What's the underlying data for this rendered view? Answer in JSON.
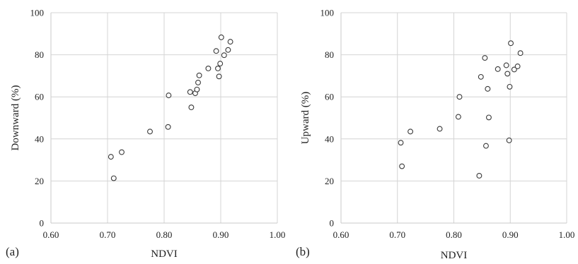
{
  "chart_data": [
    {
      "type": "scatter",
      "panel_label": "(a)",
      "xlabel": "NDVI",
      "ylabel": "Downward (%)",
      "xlim": [
        0.6,
        1.0
      ],
      "ylim": [
        0,
        100
      ],
      "xticks": [
        "0.60",
        "0.70",
        "0.80",
        "0.90",
        "1.00"
      ],
      "yticks": [
        "0",
        "20",
        "40",
        "60",
        "80",
        "100"
      ],
      "grid": true,
      "points": [
        {
          "x": 0.706,
          "y": 31.5
        },
        {
          "x": 0.711,
          "y": 21.3
        },
        {
          "x": 0.725,
          "y": 33.7
        },
        {
          "x": 0.775,
          "y": 43.5
        },
        {
          "x": 0.807,
          "y": 45.7
        },
        {
          "x": 0.808,
          "y": 60.7
        },
        {
          "x": 0.846,
          "y": 62.3
        },
        {
          "x": 0.848,
          "y": 55.0
        },
        {
          "x": 0.855,
          "y": 61.7
        },
        {
          "x": 0.858,
          "y": 63.5
        },
        {
          "x": 0.86,
          "y": 66.8
        },
        {
          "x": 0.862,
          "y": 70.2
        },
        {
          "x": 0.878,
          "y": 73.5
        },
        {
          "x": 0.892,
          "y": 81.8
        },
        {
          "x": 0.895,
          "y": 73.5
        },
        {
          "x": 0.897,
          "y": 69.7
        },
        {
          "x": 0.899,
          "y": 75.8
        },
        {
          "x": 0.901,
          "y": 88.3
        },
        {
          "x": 0.906,
          "y": 79.8
        },
        {
          "x": 0.913,
          "y": 82.3
        },
        {
          "x": 0.917,
          "y": 86.2
        }
      ]
    },
    {
      "type": "scatter",
      "panel_label": "(b)",
      "xlabel": "NDVI",
      "ylabel": "Upward (%)",
      "xlim": [
        0.6,
        1.0
      ],
      "ylim": [
        0,
        100
      ],
      "xticks": [
        "0.60",
        "0.70",
        "0.80",
        "0.90",
        "1.00"
      ],
      "yticks": [
        "0",
        "20",
        "40",
        "60",
        "80",
        "100"
      ],
      "grid": true,
      "points": [
        {
          "x": 0.706,
          "y": 38.2
        },
        {
          "x": 0.708,
          "y": 27.0
        },
        {
          "x": 0.723,
          "y": 43.5
        },
        {
          "x": 0.775,
          "y": 44.8
        },
        {
          "x": 0.808,
          "y": 50.5
        },
        {
          "x": 0.81,
          "y": 60.0
        },
        {
          "x": 0.845,
          "y": 22.5
        },
        {
          "x": 0.848,
          "y": 69.5
        },
        {
          "x": 0.855,
          "y": 78.5
        },
        {
          "x": 0.857,
          "y": 36.7
        },
        {
          "x": 0.86,
          "y": 63.8
        },
        {
          "x": 0.862,
          "y": 50.2
        },
        {
          "x": 0.878,
          "y": 73.2
        },
        {
          "x": 0.893,
          "y": 75.0
        },
        {
          "x": 0.895,
          "y": 71.0
        },
        {
          "x": 0.898,
          "y": 39.3
        },
        {
          "x": 0.899,
          "y": 64.8
        },
        {
          "x": 0.901,
          "y": 85.5
        },
        {
          "x": 0.907,
          "y": 73.0
        },
        {
          "x": 0.913,
          "y": 74.5
        },
        {
          "x": 0.918,
          "y": 80.8
        }
      ]
    }
  ]
}
